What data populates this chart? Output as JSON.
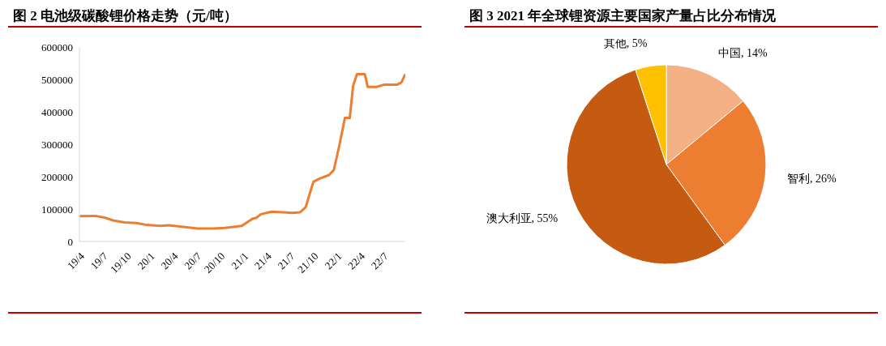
{
  "chart_data": [
    {
      "type": "line",
      "title": "图 2 电池级碳酸锂价格走势（元/吨）",
      "x": [
        "2019-04-01",
        "2019-06-01",
        "2019-07-12",
        "2019-08-10",
        "2019-09-25",
        "2019-11-10",
        "2019-12-20",
        "2020-02-10",
        "2020-03-15",
        "2020-05-10",
        "2020-07-05",
        "2020-09-05",
        "2020-10-20",
        "2020-12-25",
        "2021-02-05",
        "2021-02-20",
        "2021-03-10",
        "2021-04-20",
        "2021-06-05",
        "2021-07-10",
        "2021-08-10",
        "2021-09-01",
        "2021-09-15",
        "2021-10-01",
        "2021-10-25",
        "2021-12-01",
        "2021-12-20",
        "2022-01-10",
        "2022-02-01",
        "2022-02-20",
        "2022-03-05",
        "2022-03-20",
        "2022-04-20",
        "2022-05-01",
        "2022-06-05",
        "2022-07-05",
        "2022-08-25",
        "2022-09-10",
        "2022-09-25"
      ],
      "series": [
        {
          "color": "#ed7d31",
          "values": [
            78000,
            79000,
            73000,
            65000,
            59000,
            57000,
            51000,
            48000,
            50000,
            45000,
            40000,
            40000,
            42000,
            48000,
            70000,
            73000,
            84000,
            92000,
            90000,
            88000,
            90000,
            106000,
            143000,
            184000,
            194000,
            205000,
            221000,
            295000,
            381000,
            381000,
            480000,
            516000,
            516000,
            477000,
            477000,
            484000,
            484000,
            491000,
            516000
          ]
        }
      ],
      "xlim": [
        "2019-04-01",
        "2022-09-25"
      ],
      "xticks": [
        {
          "value": "2019-04-01",
          "label": "19/4"
        },
        {
          "value": "2019-07-01",
          "label": "19/7"
        },
        {
          "value": "2019-10-01",
          "label": "19/10"
        },
        {
          "value": "2020-01-01",
          "label": "20/1"
        },
        {
          "value": "2020-04-01",
          "label": "20/4"
        },
        {
          "value": "2020-07-01",
          "label": "20/7"
        },
        {
          "value": "2020-10-01",
          "label": "20/10"
        },
        {
          "value": "2021-01-01",
          "label": "21/1"
        },
        {
          "value": "2021-04-01",
          "label": "21/4"
        },
        {
          "value": "2021-07-01",
          "label": "21/7"
        },
        {
          "value": "2021-10-01",
          "label": "21/10"
        },
        {
          "value": "2022-01-01",
          "label": "22/1"
        },
        {
          "value": "2022-04-01",
          "label": "22/4"
        },
        {
          "value": "2022-07-01",
          "label": "22/7"
        }
      ],
      "ylim": [
        0,
        600000
      ],
      "yticks": [
        0,
        100000,
        200000,
        300000,
        400000,
        500000,
        600000
      ],
      "grid": false,
      "legend": false,
      "marker": "none",
      "line_style": "solid"
    },
    {
      "type": "pie",
      "title": "图 3 2021 年全球锂资源主要国家产量占比分布情况",
      "categories": [
        "中国",
        "智利",
        "澳大利亚",
        "其他"
      ],
      "values": [
        14,
        26,
        55,
        5
      ],
      "colors": [
        "#f4b183",
        "#ed7d31",
        "#c55a11",
        "#ffc000"
      ],
      "value_labels": [
        "14%",
        "26%",
        "55%",
        "5%"
      ],
      "legend": false
    }
  ]
}
